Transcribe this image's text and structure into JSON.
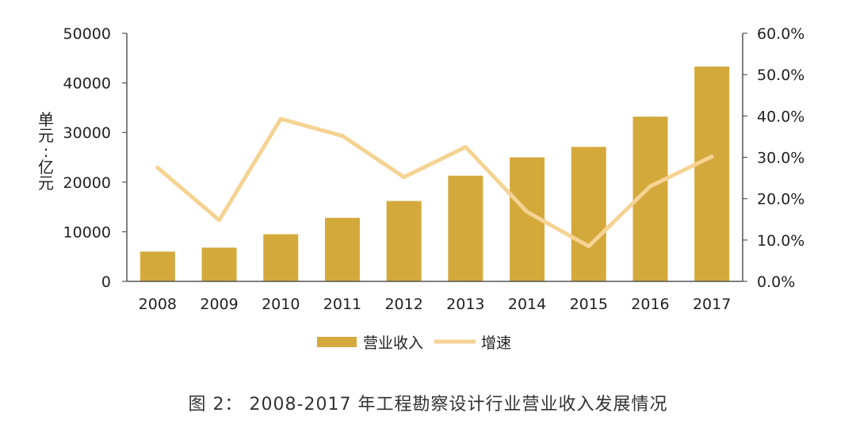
{
  "chart_data": {
    "type": "bar",
    "categories": [
      "2008",
      "2009",
      "2010",
      "2011",
      "2012",
      "2013",
      "2014",
      "2015",
      "2016",
      "2017"
    ],
    "series": [
      {
        "name": "营业收入",
        "kind": "bar",
        "axis": "left",
        "values": [
          6000,
          6800,
          9500,
          12800,
          16200,
          21300,
          25000,
          27100,
          33200,
          43300
        ]
      },
      {
        "name": "增速",
        "kind": "line",
        "axis": "right",
        "values": [
          27.5,
          14.8,
          39.3,
          35.2,
          25.2,
          32.5,
          16.8,
          8.5,
          23.0,
          30.2
        ]
      }
    ],
    "ylabel": "单元：亿元",
    "ylim": [
      0,
      50000
    ],
    "yticks": [
      "0",
      "10000",
      "20000",
      "30000",
      "40000",
      "50000"
    ],
    "y2lim": [
      0,
      60
    ],
    "y2ticks": [
      "0.0%",
      "10.0%",
      "20.0%",
      "30.0%",
      "40.0%",
      "50.0%",
      "60.0%"
    ],
    "grid": false,
    "legend": "bottom",
    "colors": {
      "bar": "#D4A93C",
      "line": "#F5D393",
      "axis": "#555555"
    }
  },
  "caption": {
    "prefix": "图 2：",
    "text": "2008-2017 年工程勘察设计行业营业收入发展情况"
  }
}
